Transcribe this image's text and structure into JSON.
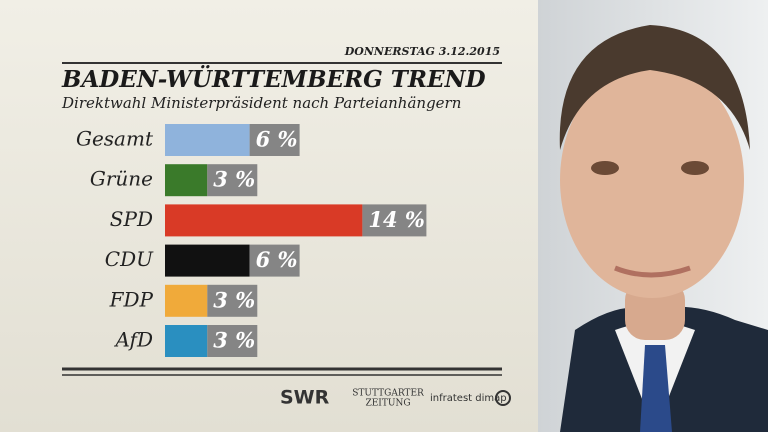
{
  "chart_data": {
    "type": "bar",
    "orientation": "horizontal",
    "date": "DONNERSTAG 3.12.2015",
    "title": "BADEN-WÜRTTEMBERG TREND",
    "subtitle": "Direktwahl Ministerpräsident nach Parteianhängern",
    "categories": [
      "Gesamt",
      "Grüne",
      "SPD",
      "CDU",
      "FDP",
      "AfD"
    ],
    "values": [
      6,
      3,
      14,
      6,
      3,
      3
    ],
    "value_labels": [
      "6 %",
      "3 %",
      "14 %",
      "6 %",
      "3 %",
      "3 %"
    ],
    "colors": [
      "#8fb3dc",
      "#3a7a2a",
      "#d93a26",
      "#111111",
      "#f0aa3a",
      "#2a8fc0"
    ]
  },
  "footer": {
    "swr": "SWR",
    "newspaper": [
      "STUTTGARTER",
      "ZEITUNG"
    ],
    "institute": "infratest dimap"
  }
}
